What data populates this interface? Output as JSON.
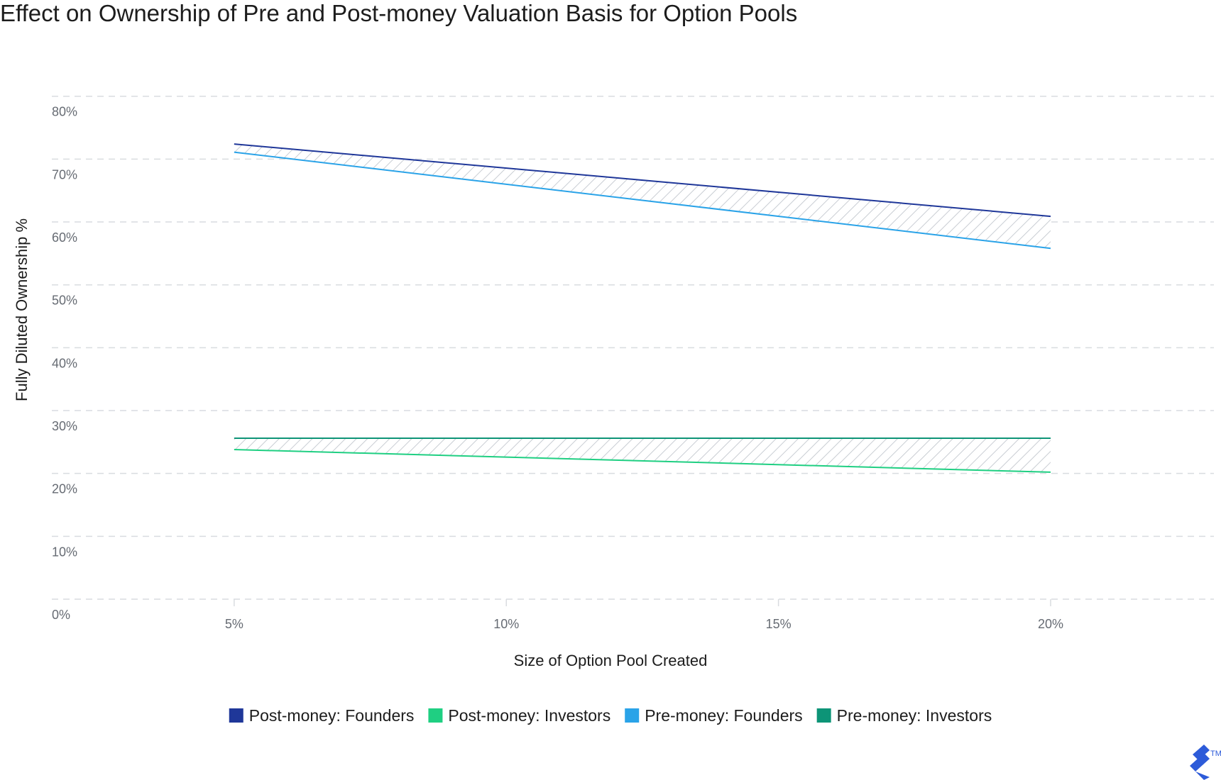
{
  "chart_data": {
    "type": "line",
    "title": "Effect on Ownership of Pre and Post-money Valuation Basis for Option Pools",
    "xlabel": "Size of Option Pool Created",
    "ylabel": "Fully Diluted Ownership %",
    "x": [
      "5%",
      "10%",
      "15%",
      "20%"
    ],
    "x_values": [
      5,
      10,
      15,
      20
    ],
    "xlim": [
      1.65,
      23.0
    ],
    "ylim": [
      0,
      82
    ],
    "y_ticks": [
      0,
      10,
      20,
      30,
      40,
      50,
      60,
      70,
      80
    ],
    "y_tick_labels": [
      "0%",
      "10%",
      "20%",
      "30%",
      "40%",
      "50%",
      "60%",
      "70%",
      "80%"
    ],
    "grid": true,
    "grid_style": "dashed horizontal",
    "legend_position": "bottom",
    "series": [
      {
        "name": "Post-money: Founders",
        "color": "#1f3799",
        "x": [
          5,
          20
        ],
        "y": [
          72.4,
          60.9
        ]
      },
      {
        "name": "Post-money: Investors",
        "color": "#1fcf82",
        "x": [
          5,
          20
        ],
        "y": [
          23.8,
          20.2
        ]
      },
      {
        "name": "Pre-money: Founders",
        "color": "#2aa3e8",
        "x": [
          5,
          20
        ],
        "y": [
          71.1,
          55.8
        ]
      },
      {
        "name": "Pre-money: Investors",
        "color": "#0d9477",
        "x": [
          5,
          20
        ],
        "y": [
          25.6,
          25.6
        ]
      }
    ],
    "shaded_gaps": [
      {
        "between": [
          "Post-money: Founders",
          "Pre-money: Founders"
        ],
        "pattern": "diagonal hatch"
      },
      {
        "between": [
          "Pre-money: Investors",
          "Post-money: Investors"
        ],
        "pattern": "diagonal hatch"
      }
    ]
  },
  "logo": {
    "name": "toptal-logo-icon",
    "trademark": "TM",
    "color": "#2d5bd9"
  }
}
